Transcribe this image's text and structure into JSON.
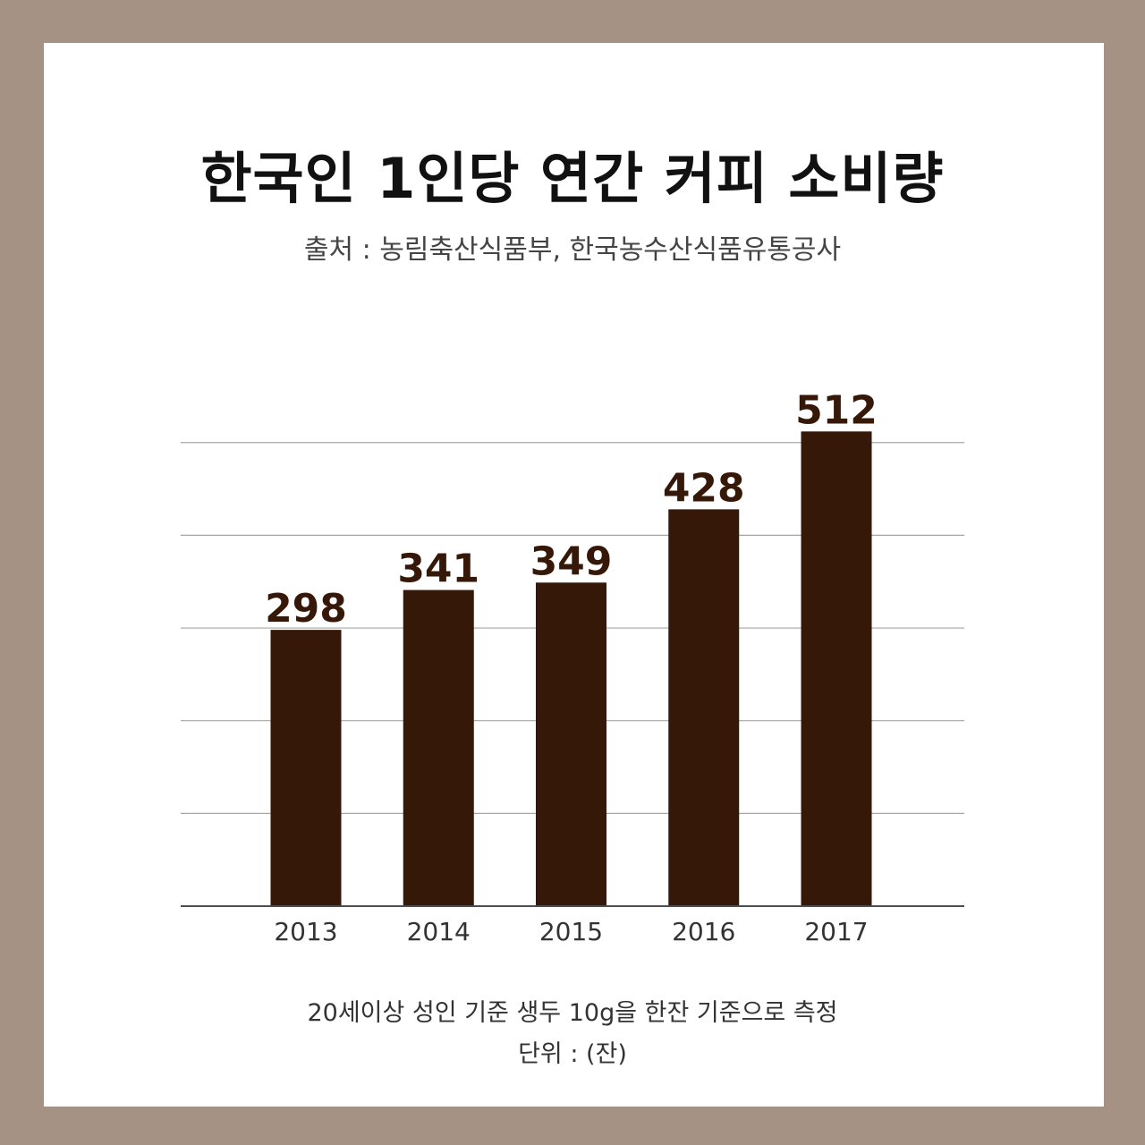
{
  "title": "한국인 1인당 연간 커피 소비량",
  "subtitle": "출처 : 농림축산식품부, 한국농수산식품유통공사",
  "notes": {
    "basis": "20세이상 성인 기준 생두 10g을 한잔 기준으로 측정",
    "unit": "단위 : (잔)"
  },
  "colors": {
    "frame": "#a69284",
    "bar": "#361808",
    "value_label": "#361808",
    "gridline": "#a6a6a6",
    "axis": "#4d4d4d"
  },
  "chart_data": {
    "type": "bar",
    "categories": [
      "2013",
      "2014",
      "2015",
      "2016",
      "2017"
    ],
    "values": [
      298,
      341,
      349,
      428,
      512
    ],
    "title": "한국인 1인당 연간 커피 소비량",
    "xlabel": "",
    "ylabel": "",
    "ylim": [
      0,
      500
    ],
    "grid": true,
    "data_labels": [
      "298",
      "341",
      "349",
      "428",
      "512"
    ]
  }
}
